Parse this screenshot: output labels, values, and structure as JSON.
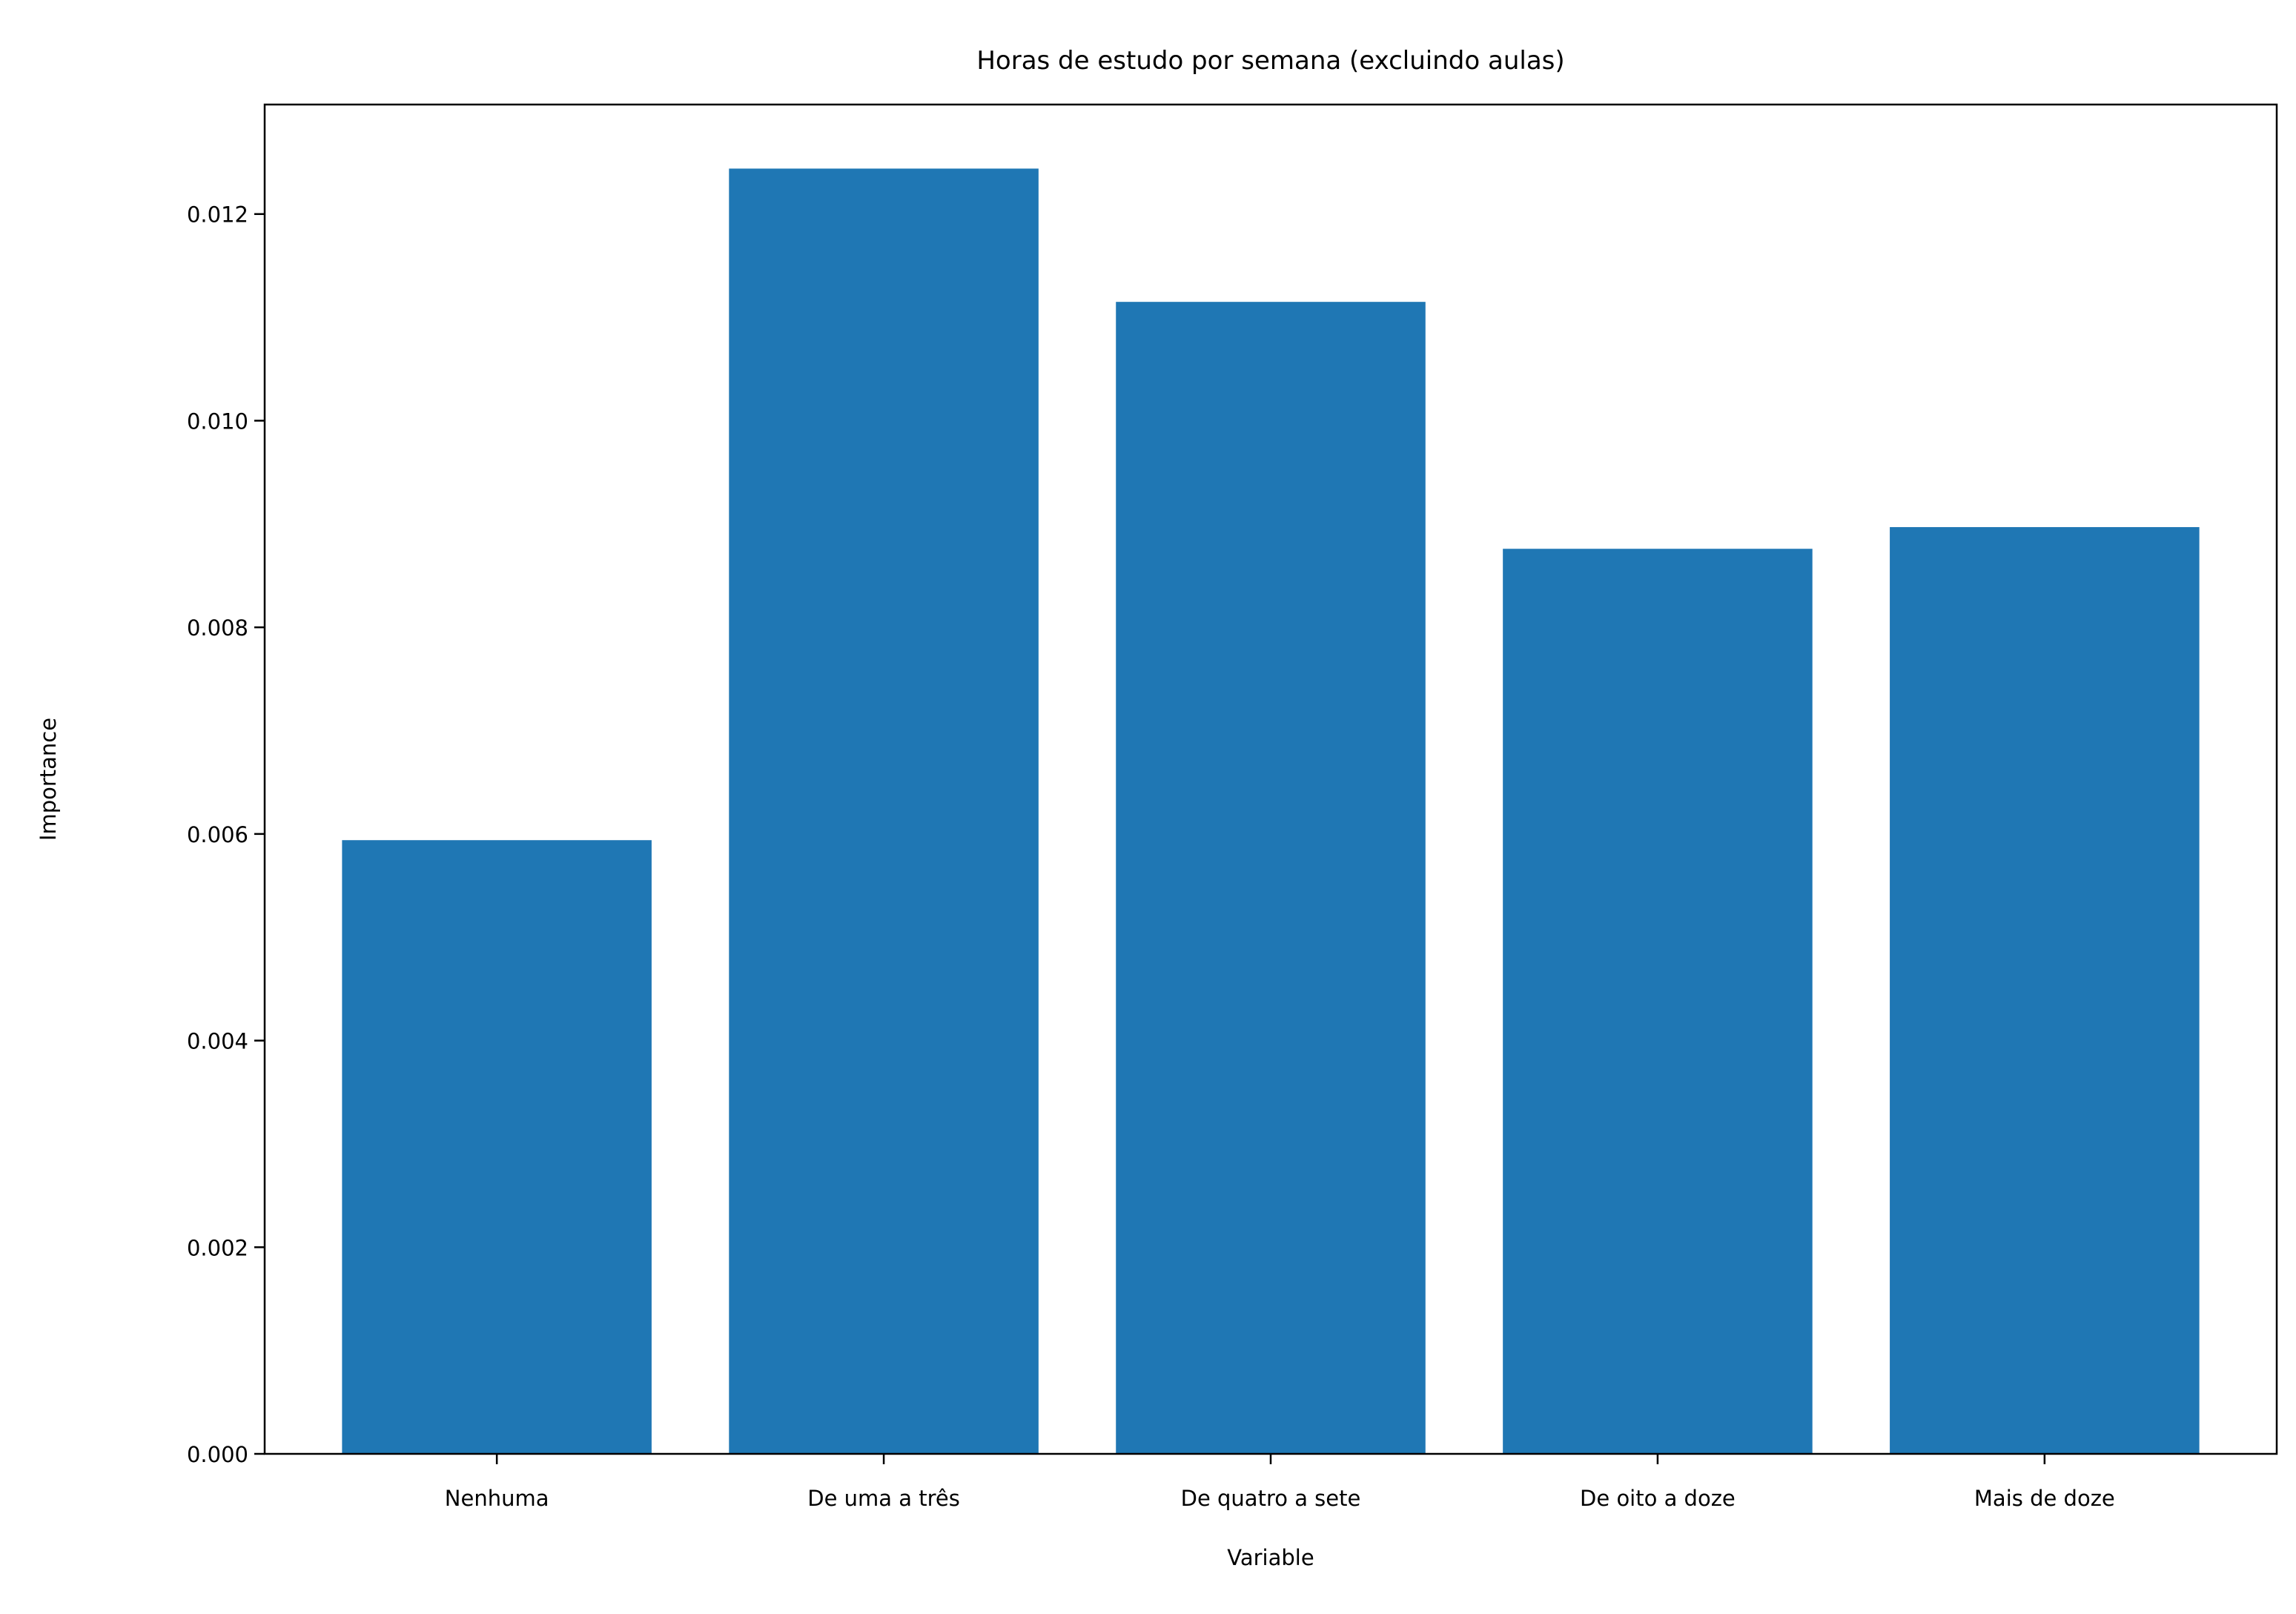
{
  "chart_data": {
    "type": "bar",
    "title": "Horas de estudo por semana (excluindo aulas)",
    "xlabel": "Variable",
    "ylabel": "Importance",
    "categories": [
      "Nenhuma",
      "De uma a três",
      "De quatro a sete",
      "De oito a doze",
      "Mais de doze"
    ],
    "values": [
      0.00594,
      0.01244,
      0.01115,
      0.00876,
      0.00897
    ],
    "ylim": [
      0,
      0.01306
    ],
    "yticks": [
      "0.000",
      "0.002",
      "0.004",
      "0.006",
      "0.008",
      "0.010",
      "0.012"
    ],
    "ytick_values": [
      0,
      0.002,
      0.004,
      0.006,
      0.008,
      0.01,
      0.012
    ],
    "grid": false,
    "legend": "none",
    "bar_color": "#1f77b4"
  }
}
